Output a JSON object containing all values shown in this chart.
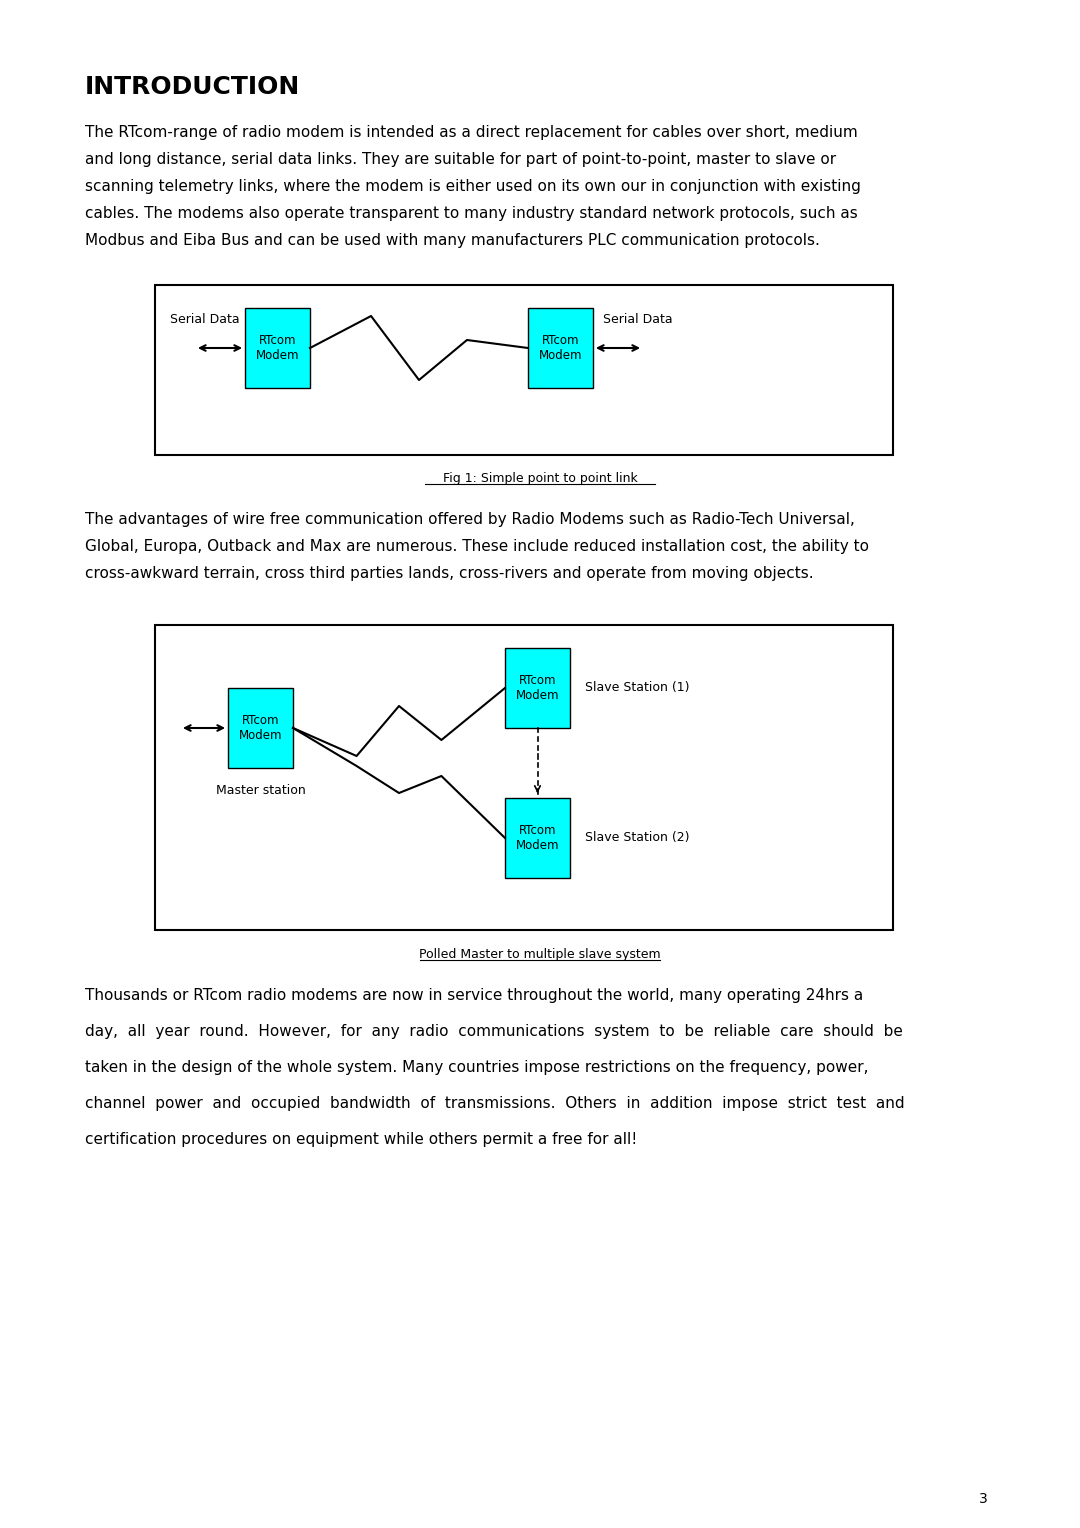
{
  "title": "INTRODUCTION",
  "para1_lines": [
    "The RTcom-range of radio modem is intended as a direct replacement for cables over short, medium",
    "and long distance, serial data links. They are suitable for part of point-to-point, master to slave or",
    "scanning telemetry links, where the modem is either used on its own our in conjunction with existing",
    "cables. The modems also operate transparent to many industry standard network protocols, such as",
    "Modbus and Eiba Bus and can be used with many manufacturers PLC communication protocols."
  ],
  "fig1_caption": "Fig 1: Simple point to point link",
  "para2_lines": [
    "The advantages of wire free communication offered by Radio Modems such as Radio-Tech Universal,",
    "Global, Europa, Outback and Max are numerous. These include reduced installation cost, the ability to",
    "cross-awkward terrain, cross third parties lands, cross-rivers and operate from moving objects."
  ],
  "fig2_caption": "Polled Master to multiple slave system",
  "para3_lines": [
    "Thousands or RTcom radio modems are now in service throughout the world, many operating 24hrs a",
    "day,  all  year  round.  However,  for  any  radio  communications  system  to  be  reliable  care  should  be",
    "taken in the design of the whole system. Many countries impose restrictions on the frequency, power,",
    "channel  power  and  occupied  bandwidth  of  transmissions.  Others  in  addition  impose  strict  test  and",
    "certification procedures on equipment while others permit a free for all!"
  ],
  "page_number": "3",
  "cyan_color": "#00FFFF",
  "bg_color": "#FFFFFF",
  "text_color": "#000000"
}
